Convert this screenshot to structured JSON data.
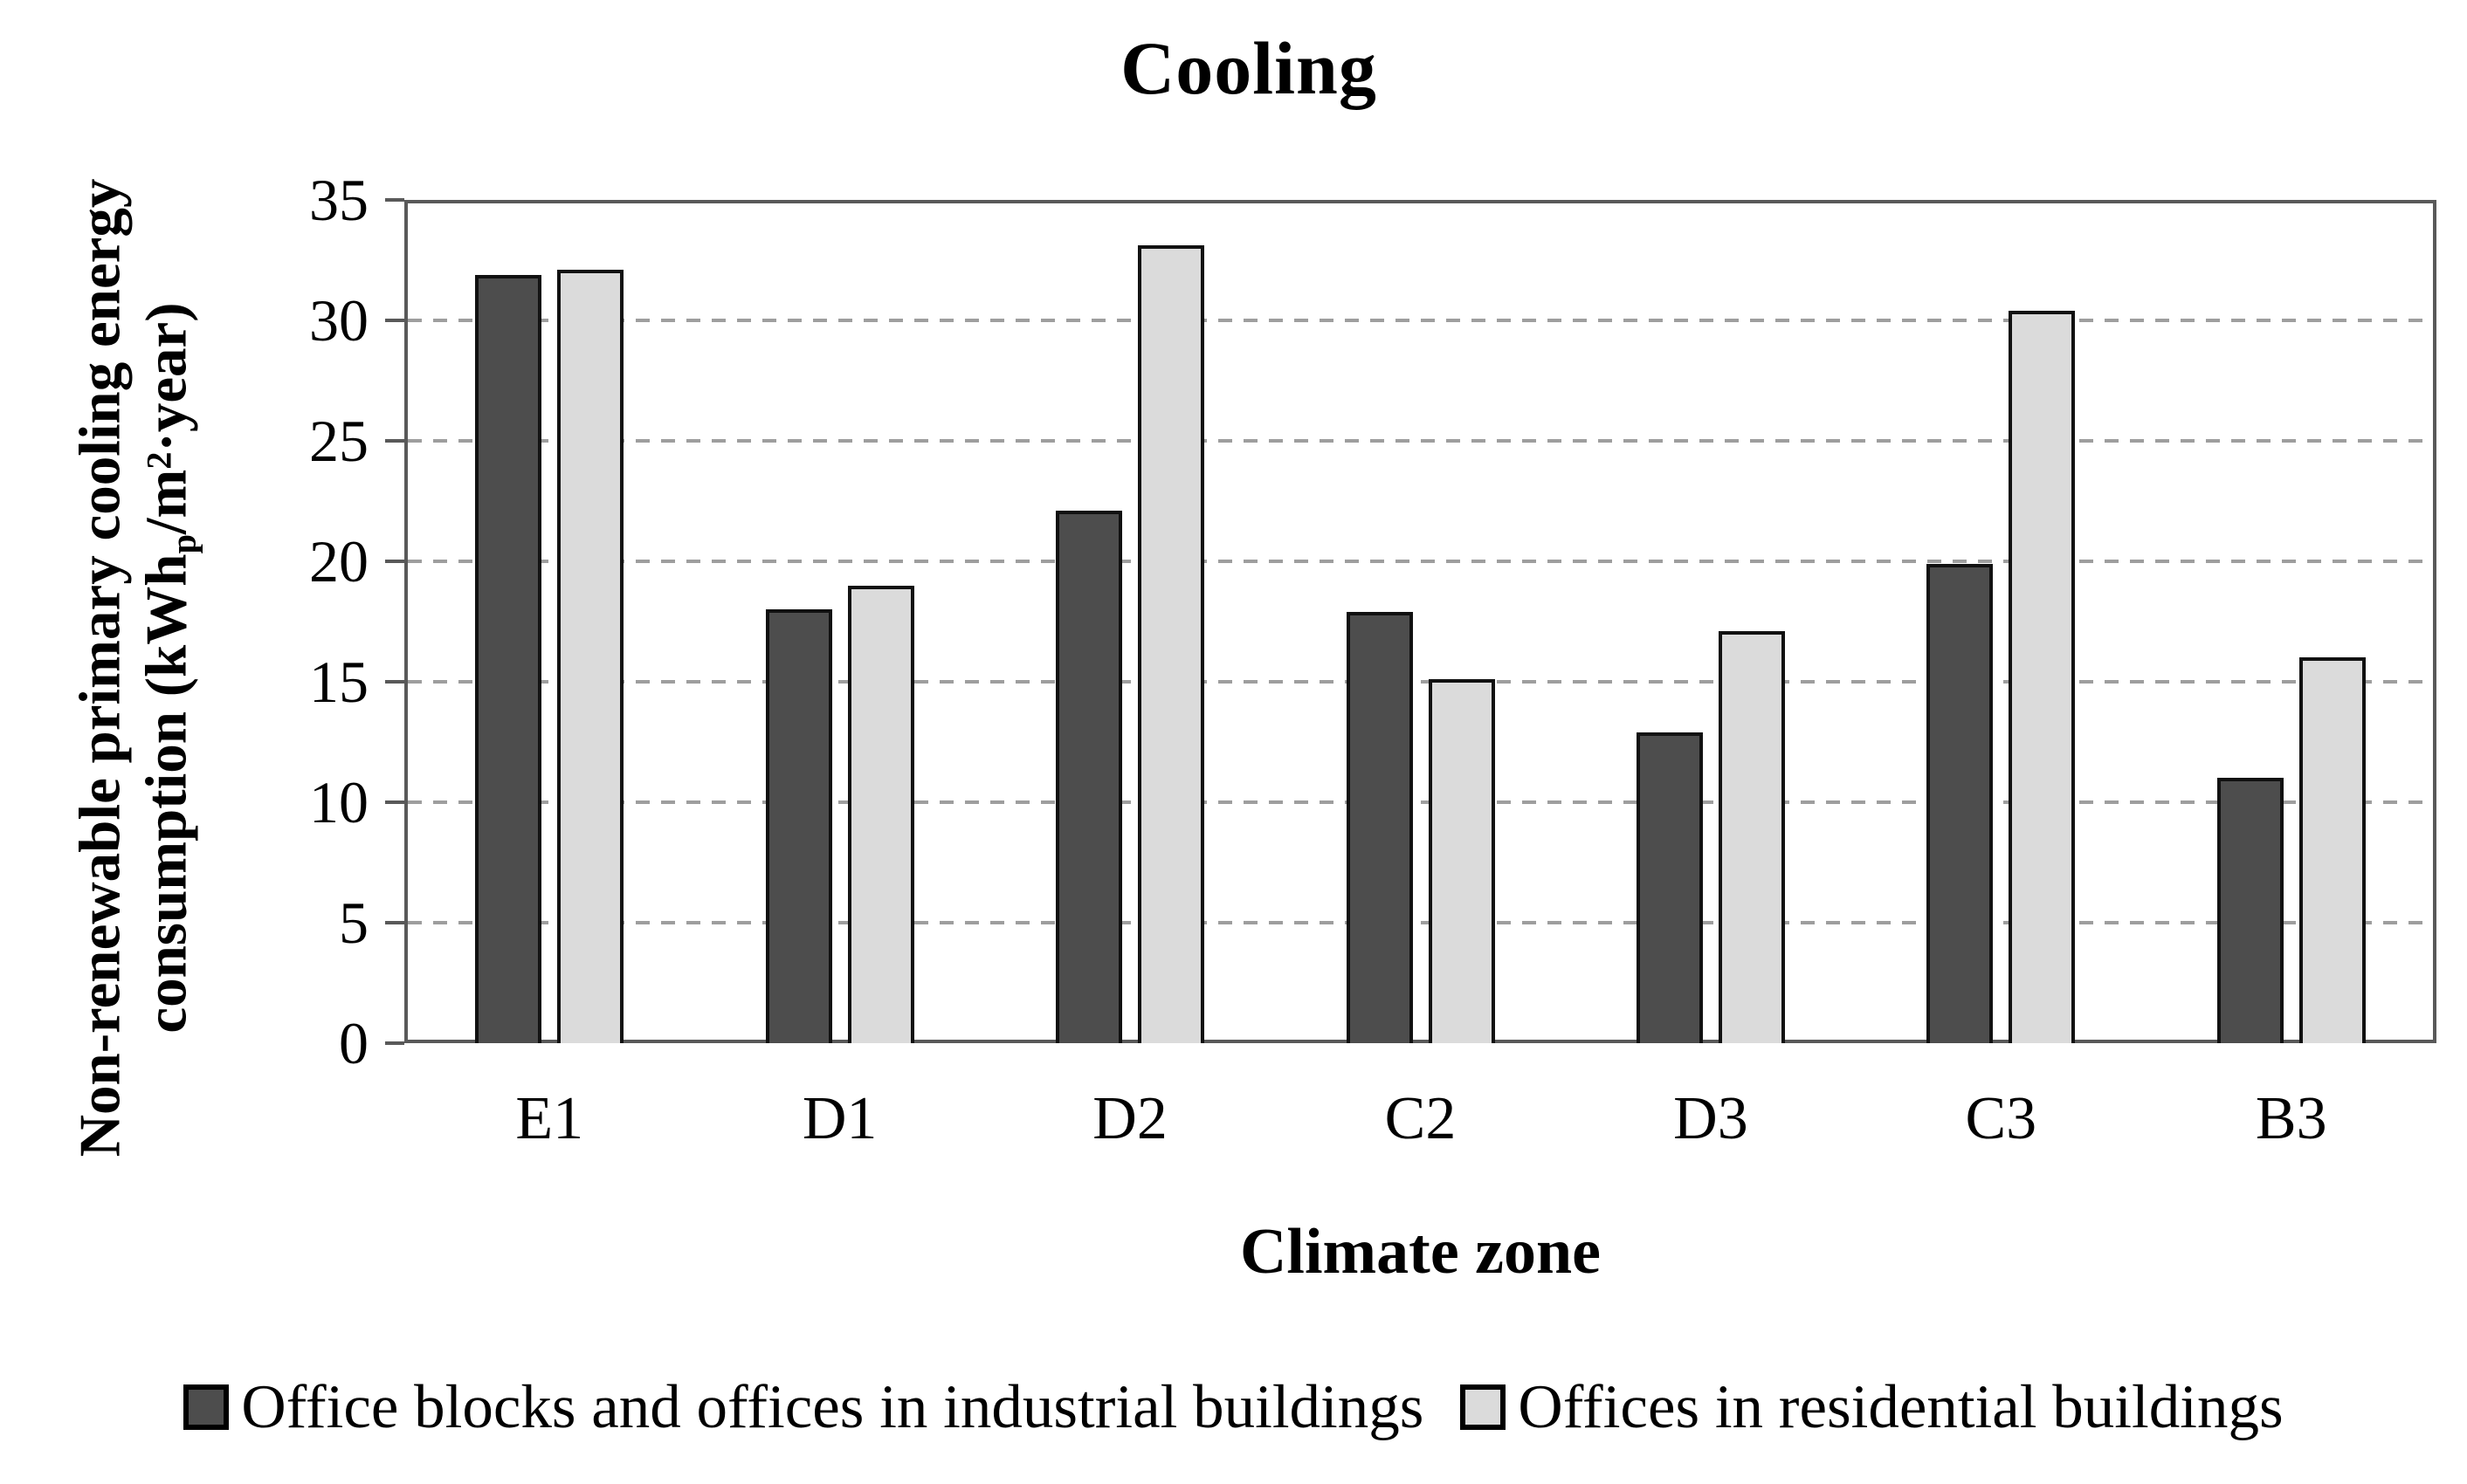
{
  "title": "Cooling",
  "axes": {
    "x_title": "Climate zone",
    "y_title_line1": "Non-renewable primary cooling energy",
    "y_title_line2_parts": [
      {
        "text": "consumption (kWh"
      },
      {
        "text": "p",
        "style": "sub"
      },
      {
        "text": "/m"
      },
      {
        "text": "2",
        "style": "sup"
      },
      {
        "text": "·year)"
      }
    ]
  },
  "colors": {
    "series_dark": "#4d4d4d",
    "series_light": "#dbdbdb",
    "bar_border": "#111111",
    "plot_border": "#595959",
    "gridline": "#9e9e9e",
    "text": "#000000",
    "background": "#ffffff"
  },
  "chart_data": {
    "type": "bar",
    "title": "Cooling",
    "xlabel": "Climate zone",
    "ylabel": "Non-renewable primary cooling energy consumption (kWhp/m2·year)",
    "categories": [
      "E1",
      "D1",
      "D2",
      "C2",
      "D3",
      "C3",
      "B3"
    ],
    "series": [
      {
        "name": "Office blocks and offices in industrial buildings",
        "color": "#4d4d4d",
        "values": [
          31.9,
          18.0,
          22.1,
          17.9,
          12.9,
          19.9,
          11.0
        ]
      },
      {
        "name": "Offices in residential buildings",
        "color": "#dbdbdb",
        "values": [
          32.1,
          19.0,
          33.1,
          15.1,
          17.1,
          30.4,
          16.0
        ]
      }
    ],
    "ylim": [
      0,
      35
    ],
    "yticks": [
      0,
      5,
      10,
      15,
      20,
      25,
      30,
      35
    ],
    "grid": "horizontal-dashed",
    "legend_position": "bottom"
  }
}
